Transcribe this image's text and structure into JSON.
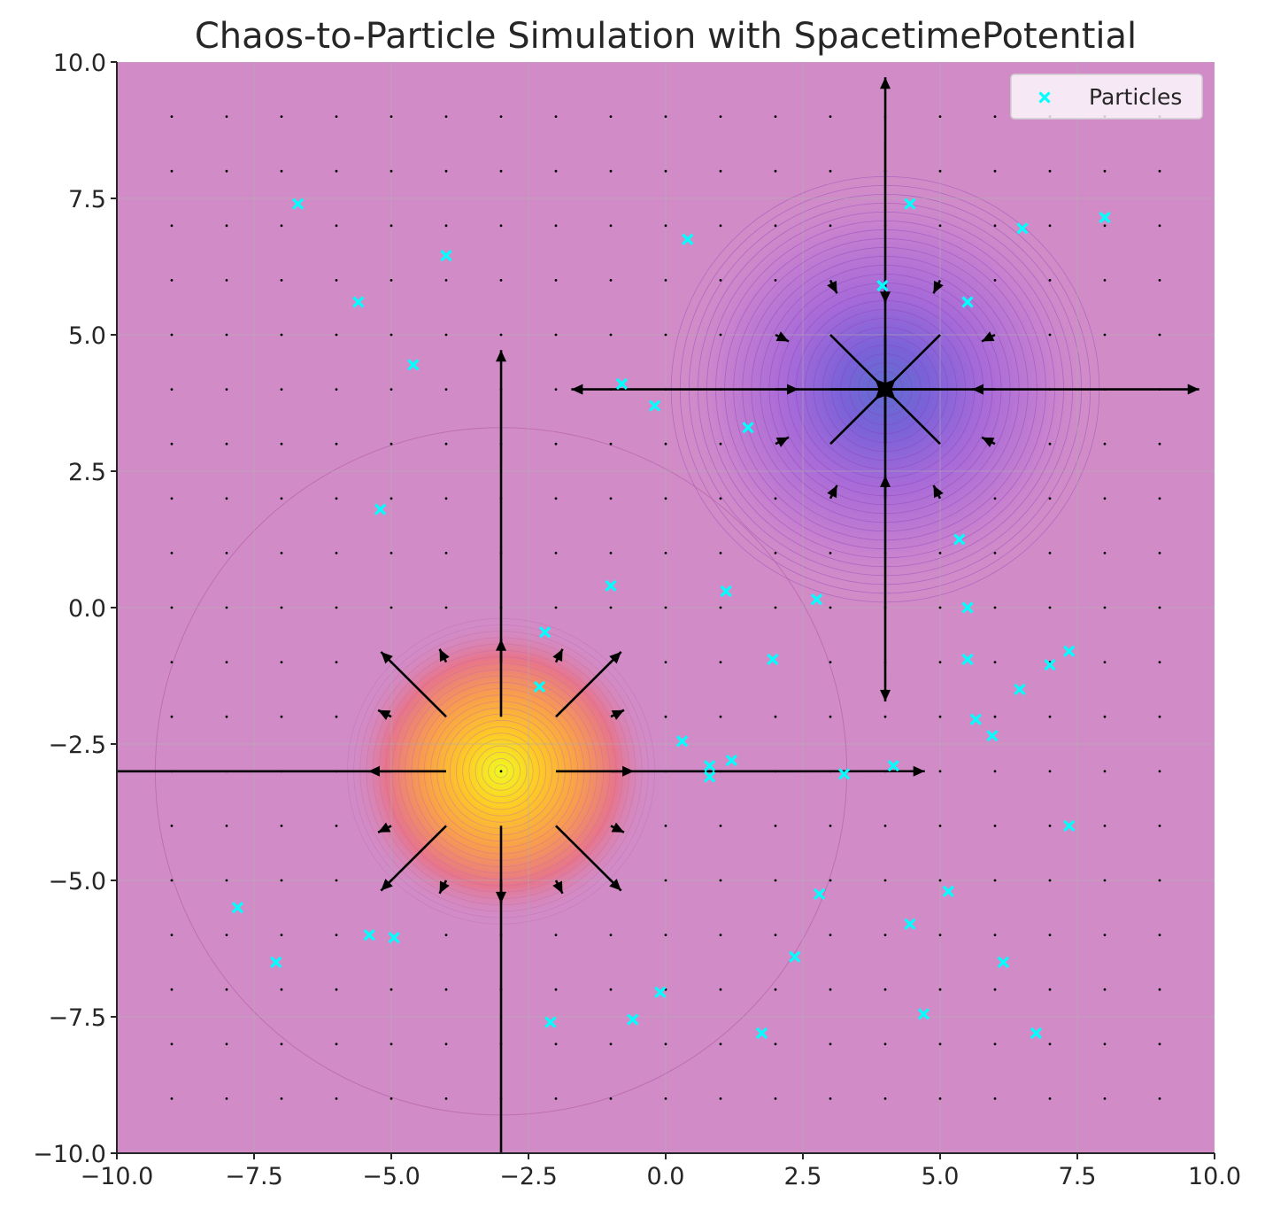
{
  "chart_data": {
    "type": "scatter",
    "title": "Chaos-to-Particle Simulation with SpacetimePotential",
    "xlabel": "",
    "ylabel": "",
    "xlim": [
      -10,
      10
    ],
    "ylim": [
      -10,
      10
    ],
    "grid": true,
    "legend": {
      "placement": "top-right",
      "entries": [
        "Particles"
      ]
    },
    "x_ticks": [
      -10,
      -7.5,
      -5,
      -2.5,
      0,
      2.5,
      5,
      7.5,
      10
    ],
    "y_ticks": [
      -10,
      -7.5,
      -5,
      -2.5,
      0,
      2.5,
      5,
      7.5,
      10
    ],
    "x_tick_labels": [
      "−10.0",
      "−7.5",
      "−5.0",
      "−2.5",
      "0.0",
      "2.5",
      "5.0",
      "7.5",
      "10.0"
    ],
    "y_tick_labels": [
      "−10.0",
      "−7.5",
      "−5.0",
      "−2.5",
      "0.0",
      "2.5",
      "5.0",
      "7.5",
      "10.0"
    ],
    "potential": {
      "colormap": "plasma",
      "background_color": "#d18cc8",
      "sources": [
        {
          "kind": "peak",
          "x": -3,
          "y": -3,
          "radius": 2.8
        },
        {
          "kind": "well",
          "x": 4,
          "y": 4,
          "radius": 3.9
        }
      ]
    },
    "vector_field": {
      "grid_x": [
        -9,
        -8,
        -7,
        -6,
        -5,
        -4,
        -3,
        -2,
        -1,
        0,
        1,
        2,
        3,
        4,
        5,
        6,
        7,
        8,
        9
      ],
      "grid_y": [
        -9,
        -8,
        -7,
        -6,
        -5,
        -4,
        -3,
        -2,
        -1,
        0,
        1,
        2,
        3,
        4,
        5,
        6,
        7,
        8,
        9
      ],
      "sources": [
        {
          "x": -3,
          "y": -3,
          "sign": 1
        },
        {
          "x": 4,
          "y": 4,
          "sign": -1
        }
      ]
    },
    "series": [
      {
        "name": "Particles",
        "marker": "x",
        "color": "#00ffff",
        "points": [
          [
            -6.7,
            7.4
          ],
          [
            -4.0,
            6.45
          ],
          [
            -5.6,
            5.6
          ],
          [
            -4.6,
            4.45
          ],
          [
            -5.2,
            1.8
          ],
          [
            -0.8,
            4.1
          ],
          [
            -0.2,
            3.7
          ],
          [
            0.4,
            6.75
          ],
          [
            3.95,
            5.9
          ],
          [
            4.45,
            7.4
          ],
          [
            5.5,
            5.6
          ],
          [
            6.5,
            6.95
          ],
          [
            8.0,
            7.15
          ],
          [
            1.5,
            3.3
          ],
          [
            5.35,
            1.25
          ],
          [
            -1.0,
            0.4
          ],
          [
            -2.2,
            -0.45
          ],
          [
            -2.3,
            -1.45
          ],
          [
            1.1,
            0.3
          ],
          [
            2.75,
            0.15
          ],
          [
            5.5,
            0.0
          ],
          [
            1.95,
            -0.95
          ],
          [
            5.5,
            -0.95
          ],
          [
            6.45,
            -1.5
          ],
          [
            7.0,
            -1.05
          ],
          [
            7.35,
            -0.8
          ],
          [
            5.65,
            -2.05
          ],
          [
            5.95,
            -2.35
          ],
          [
            0.3,
            -2.45
          ],
          [
            0.8,
            -2.9
          ],
          [
            0.8,
            -3.1
          ],
          [
            1.2,
            -2.8
          ],
          [
            3.25,
            -3.05
          ],
          [
            4.15,
            -2.9
          ],
          [
            7.35,
            -4.0
          ],
          [
            -7.8,
            -5.5
          ],
          [
            -7.1,
            -6.5
          ],
          [
            -5.4,
            -6.0
          ],
          [
            -4.95,
            -6.05
          ],
          [
            -2.1,
            -7.6
          ],
          [
            -0.6,
            -7.55
          ],
          [
            -0.1,
            -7.05
          ],
          [
            1.75,
            -7.8
          ],
          [
            2.35,
            -6.4
          ],
          [
            2.8,
            -5.25
          ],
          [
            4.45,
            -5.8
          ],
          [
            5.15,
            -5.2
          ],
          [
            4.7,
            -7.45
          ],
          [
            6.15,
            -6.5
          ],
          [
            6.75,
            -7.8
          ]
        ]
      }
    ]
  }
}
